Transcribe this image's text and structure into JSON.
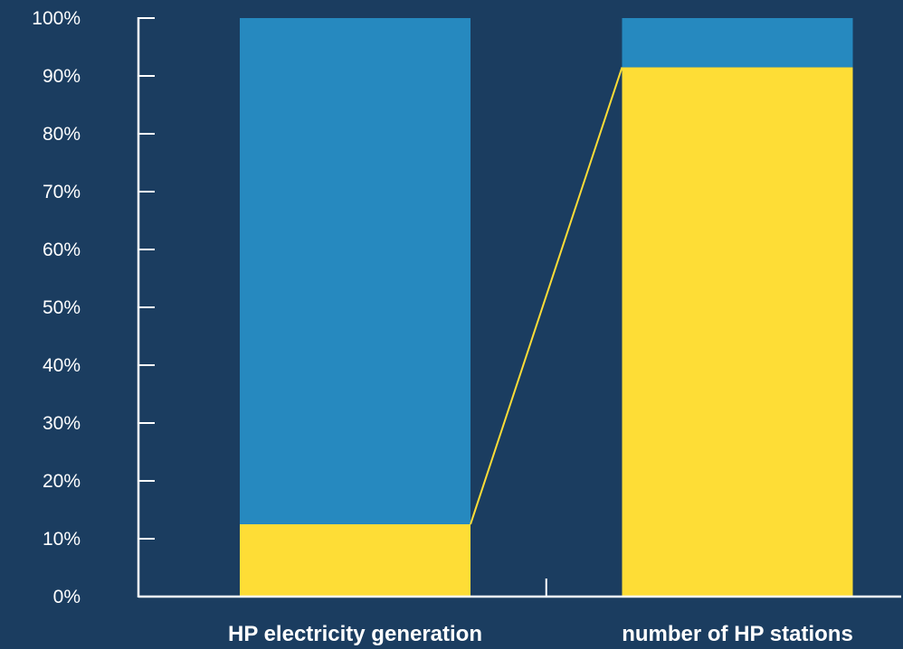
{
  "chart_data": {
    "type": "bar",
    "stacked": true,
    "percent_stacked": true,
    "categories": [
      "HP electricity generation",
      "number of HP stations"
    ],
    "series": [
      {
        "values": [
          12.5,
          91.5
        ],
        "color": "#fedd36"
      },
      {
        "values": [
          87.5,
          8.5
        ],
        "color": "#2689bf"
      }
    ],
    "connector": {
      "series_index": 0,
      "color": "#fedd36"
    },
    "y_ticks": [
      "0%",
      "10%",
      "20%",
      "30%",
      "40%",
      "50%",
      "60%",
      "70%",
      "80%",
      "90%",
      "100%"
    ],
    "ylim": [
      0,
      100
    ],
    "grid": false,
    "colors": {
      "background": "#1b3d60",
      "axis": "#ffffff",
      "text": "#ffffff"
    }
  }
}
